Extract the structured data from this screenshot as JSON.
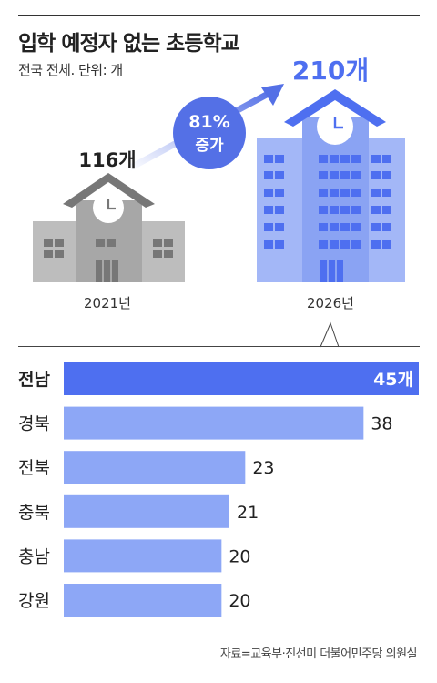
{
  "header": {
    "title": "입학 예정자 없는 초등학교",
    "subtitle": "전국 전체. 단위: 개"
  },
  "illustration": {
    "left_value": "116개",
    "left_year": "2021년",
    "right_value": "210개",
    "right_year": "2026년",
    "growth_line1": "81%",
    "growth_line2": "증가"
  },
  "colors": {
    "highlight_bar": "#4e6ff0",
    "bar": "#8da7f6",
    "school_2021": "#a9a9a9",
    "school_2026": "#8ea6f4",
    "accent": "#5470e6"
  },
  "chart_data": {
    "type": "bar",
    "orientation": "horizontal",
    "categories": [
      "전남",
      "경북",
      "전북",
      "충북",
      "충남",
      "강원"
    ],
    "values": [
      45,
      38,
      23,
      21,
      20,
      20
    ],
    "value_labels": [
      "45개",
      "38",
      "23",
      "21",
      "20",
      "20"
    ],
    "highlight": [
      "전남"
    ],
    "xlim": [
      0,
      45
    ]
  },
  "footer": {
    "source": "자료=교육부·진선미 더불어민주당 의원실"
  }
}
